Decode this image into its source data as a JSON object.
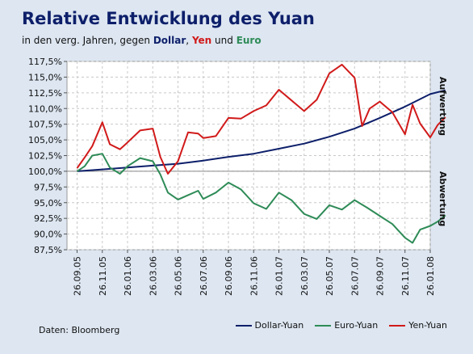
{
  "header": {
    "title": "Relative Entwicklung des Yuan",
    "subtitle_prefix": "in den verg. Jahren, gegen ",
    "subtitle_dollar": "Dollar",
    "subtitle_sep": ", ",
    "subtitle_yen": "Yen",
    "subtitle_und": " und ",
    "subtitle_euro": "Euro"
  },
  "source": "Daten: Bloomberg",
  "side_labels": {
    "top": "Aufwertung",
    "bottom": "Abwertung"
  },
  "colors": {
    "dollar": "#0d1f6a",
    "euro": "#2e8b57",
    "yen": "#d11a1a",
    "background": "#dde6f1",
    "plot": "#ffffff"
  },
  "chart_data": {
    "type": "line",
    "x_ticks": [
      "26.09.05",
      "26.11.05",
      "26.01.06",
      "26.03.06",
      "26.05.06",
      "26.07.06",
      "26.09.06",
      "26.11.06",
      "26.01.07",
      "26.03.07",
      "26.05.07",
      "26.07.07",
      "26.09.07",
      "26.11.07",
      "26.01.08"
    ],
    "y_ticks": [
      "87,5%",
      "90,0%",
      "92,5%",
      "95,0%",
      "97,5%",
      "100,0%",
      "102,5%",
      "105,0%",
      "107,5%",
      "110,0%",
      "112,5%",
      "115,0%",
      "117,5%"
    ],
    "ylim": [
      87.5,
      117.5
    ],
    "grid": true,
    "legend_position": "bottom-right",
    "series": [
      {
        "name": "Dollar-Yuan",
        "color": "#0d1f6a",
        "points": [
          [
            0,
            100.0
          ],
          [
            1,
            100.3
          ],
          [
            2,
            100.6
          ],
          [
            3,
            100.9
          ],
          [
            4,
            101.2
          ],
          [
            5,
            101.7
          ],
          [
            6,
            102.3
          ],
          [
            7,
            102.8
          ],
          [
            8,
            103.6
          ],
          [
            9,
            104.4
          ],
          [
            10,
            105.5
          ],
          [
            11,
            106.8
          ],
          [
            12,
            108.5
          ],
          [
            13,
            110.3
          ],
          [
            14,
            112.3
          ],
          [
            14.6,
            112.9
          ]
        ]
      },
      {
        "name": "Euro-Yuan",
        "color": "#2e8b57",
        "points": [
          [
            0,
            100.0
          ],
          [
            0.3,
            100.8
          ],
          [
            0.6,
            102.5
          ],
          [
            1,
            102.8
          ],
          [
            1.3,
            100.6
          ],
          [
            1.7,
            99.6
          ],
          [
            2,
            100.8
          ],
          [
            2.5,
            102.1
          ],
          [
            3,
            101.6
          ],
          [
            3.3,
            99.5
          ],
          [
            3.6,
            96.6
          ],
          [
            4,
            95.5
          ],
          [
            4.4,
            96.2
          ],
          [
            4.8,
            96.9
          ],
          [
            5,
            95.6
          ],
          [
            5.5,
            96.6
          ],
          [
            6,
            98.2
          ],
          [
            6.5,
            97.1
          ],
          [
            7,
            94.9
          ],
          [
            7.5,
            94.0
          ],
          [
            8,
            96.6
          ],
          [
            8.5,
            95.4
          ],
          [
            9,
            93.2
          ],
          [
            9.5,
            92.4
          ],
          [
            10,
            94.6
          ],
          [
            10.5,
            93.9
          ],
          [
            11,
            95.4
          ],
          [
            11.5,
            94.2
          ],
          [
            12,
            92.9
          ],
          [
            12.5,
            91.6
          ],
          [
            13,
            89.4
          ],
          [
            13.3,
            88.6
          ],
          [
            13.6,
            90.7
          ],
          [
            14,
            91.3
          ],
          [
            14.3,
            92.0
          ],
          [
            14.6,
            93.0
          ]
        ]
      },
      {
        "name": "Yen-Yuan",
        "color": "#d11a1a",
        "points": [
          [
            0,
            100.5
          ],
          [
            0.3,
            102.2
          ],
          [
            0.6,
            104.0
          ],
          [
            1,
            107.8
          ],
          [
            1.3,
            104.3
          ],
          [
            1.7,
            103.5
          ],
          [
            2,
            104.6
          ],
          [
            2.5,
            106.5
          ],
          [
            3,
            106.8
          ],
          [
            3.3,
            102.3
          ],
          [
            3.6,
            99.6
          ],
          [
            4,
            101.6
          ],
          [
            4.4,
            106.2
          ],
          [
            4.8,
            106.0
          ],
          [
            5,
            105.3
          ],
          [
            5.5,
            105.6
          ],
          [
            6,
            108.5
          ],
          [
            6.5,
            108.4
          ],
          [
            7,
            109.6
          ],
          [
            7.5,
            110.5
          ],
          [
            8,
            113.0
          ],
          [
            8.5,
            111.3
          ],
          [
            9,
            109.6
          ],
          [
            9.5,
            111.4
          ],
          [
            10,
            115.6
          ],
          [
            10.5,
            117.0
          ],
          [
            11,
            114.9
          ],
          [
            11.3,
            107.2
          ],
          [
            11.6,
            110.0
          ],
          [
            12,
            111.1
          ],
          [
            12.5,
            109.4
          ],
          [
            13,
            105.9
          ],
          [
            13.3,
            110.6
          ],
          [
            13.6,
            107.6
          ],
          [
            14,
            105.4
          ],
          [
            14.3,
            107.4
          ],
          [
            14.6,
            108.6
          ]
        ]
      }
    ]
  }
}
